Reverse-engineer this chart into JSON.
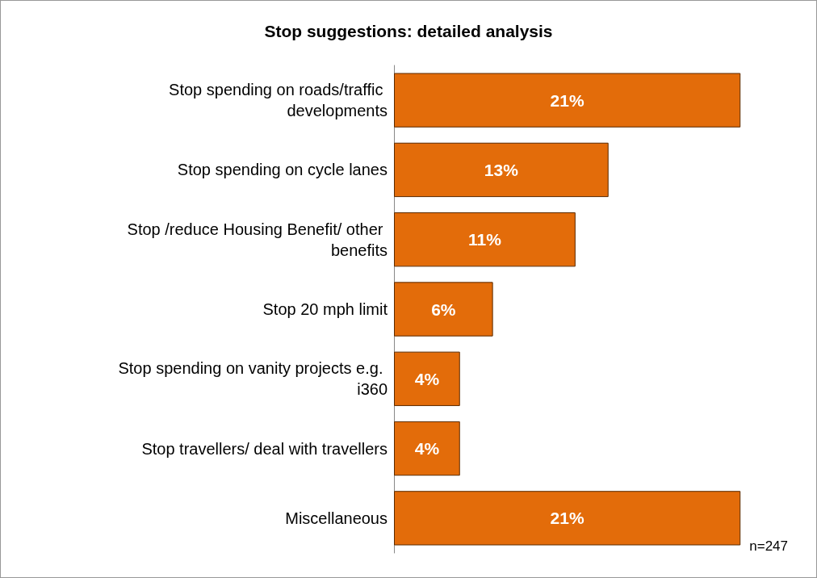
{
  "chart_data": {
    "type": "bar",
    "orientation": "horizontal",
    "title": "Stop suggestions: detailed analysis",
    "categories": [
      "Stop spending on roads/traffic developments",
      "Stop spending on cycle lanes",
      "Stop /reduce Housing Benefit/ other benefits",
      "Stop 20 mph limit",
      "Stop spending on vanity projects e.g. i360",
      "Stop travellers/ deal with travellers",
      "Miscellaneous"
    ],
    "values": [
      21,
      13,
      11,
      6,
      4,
      4,
      21
    ],
    "value_labels": [
      "21%",
      "13%",
      "11%",
      "6%",
      "4%",
      "4%",
      "21%"
    ],
    "color": "#e36c0a",
    "annotations": [
      "n=247"
    ]
  }
}
